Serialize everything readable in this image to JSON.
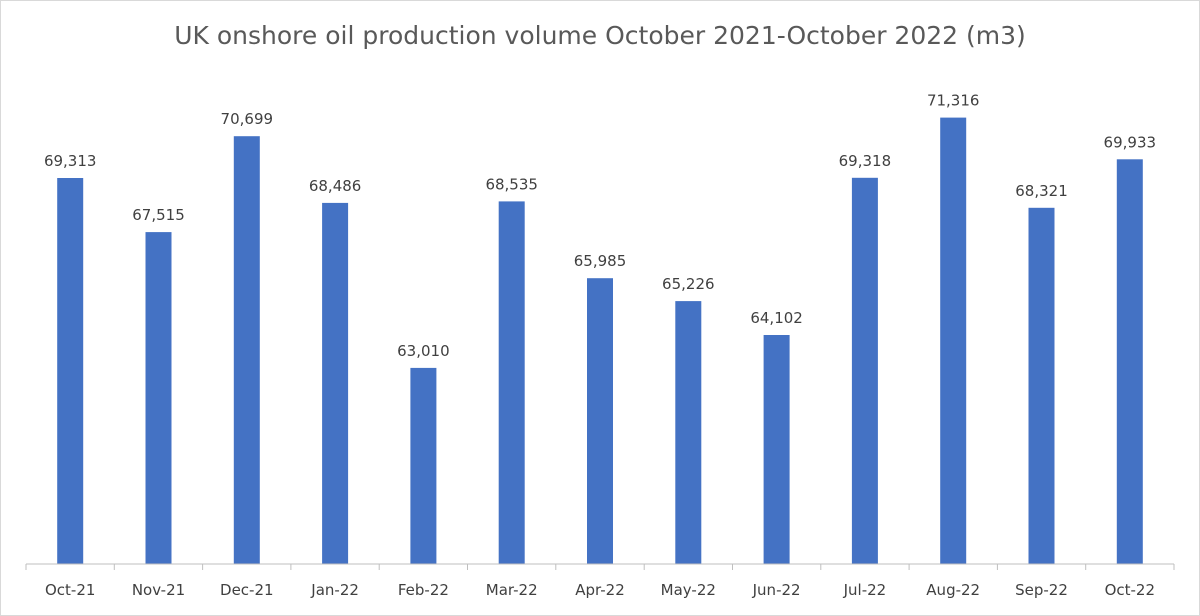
{
  "chart_data": {
    "type": "bar",
    "title": "UK onshore oil production volume October 2021-October 2022 (m3)",
    "xlabel": "",
    "ylabel": "",
    "categories": [
      "Oct-21",
      "Nov-21",
      "Dec-21",
      "Jan-22",
      "Feb-22",
      "Mar-22",
      "Apr-22",
      "May-22",
      "Jun-22",
      "Jul-22",
      "Aug-22",
      "Sep-22",
      "Oct-22"
    ],
    "values": [
      69313,
      67515,
      70699,
      68486,
      63010,
      68535,
      65985,
      65226,
      64102,
      69318,
      71316,
      68321,
      69933
    ],
    "value_labels": [
      "69,313",
      "67,515",
      "70,699",
      "68,486",
      "63,010",
      "68,535",
      "65,985",
      "65,226",
      "64,102",
      "69,318",
      "71,316",
      "68,321",
      "69,933"
    ],
    "ylim": [
      56500,
      72000
    ],
    "grid": false,
    "legend": "none",
    "bar_color": "#4472C4"
  }
}
